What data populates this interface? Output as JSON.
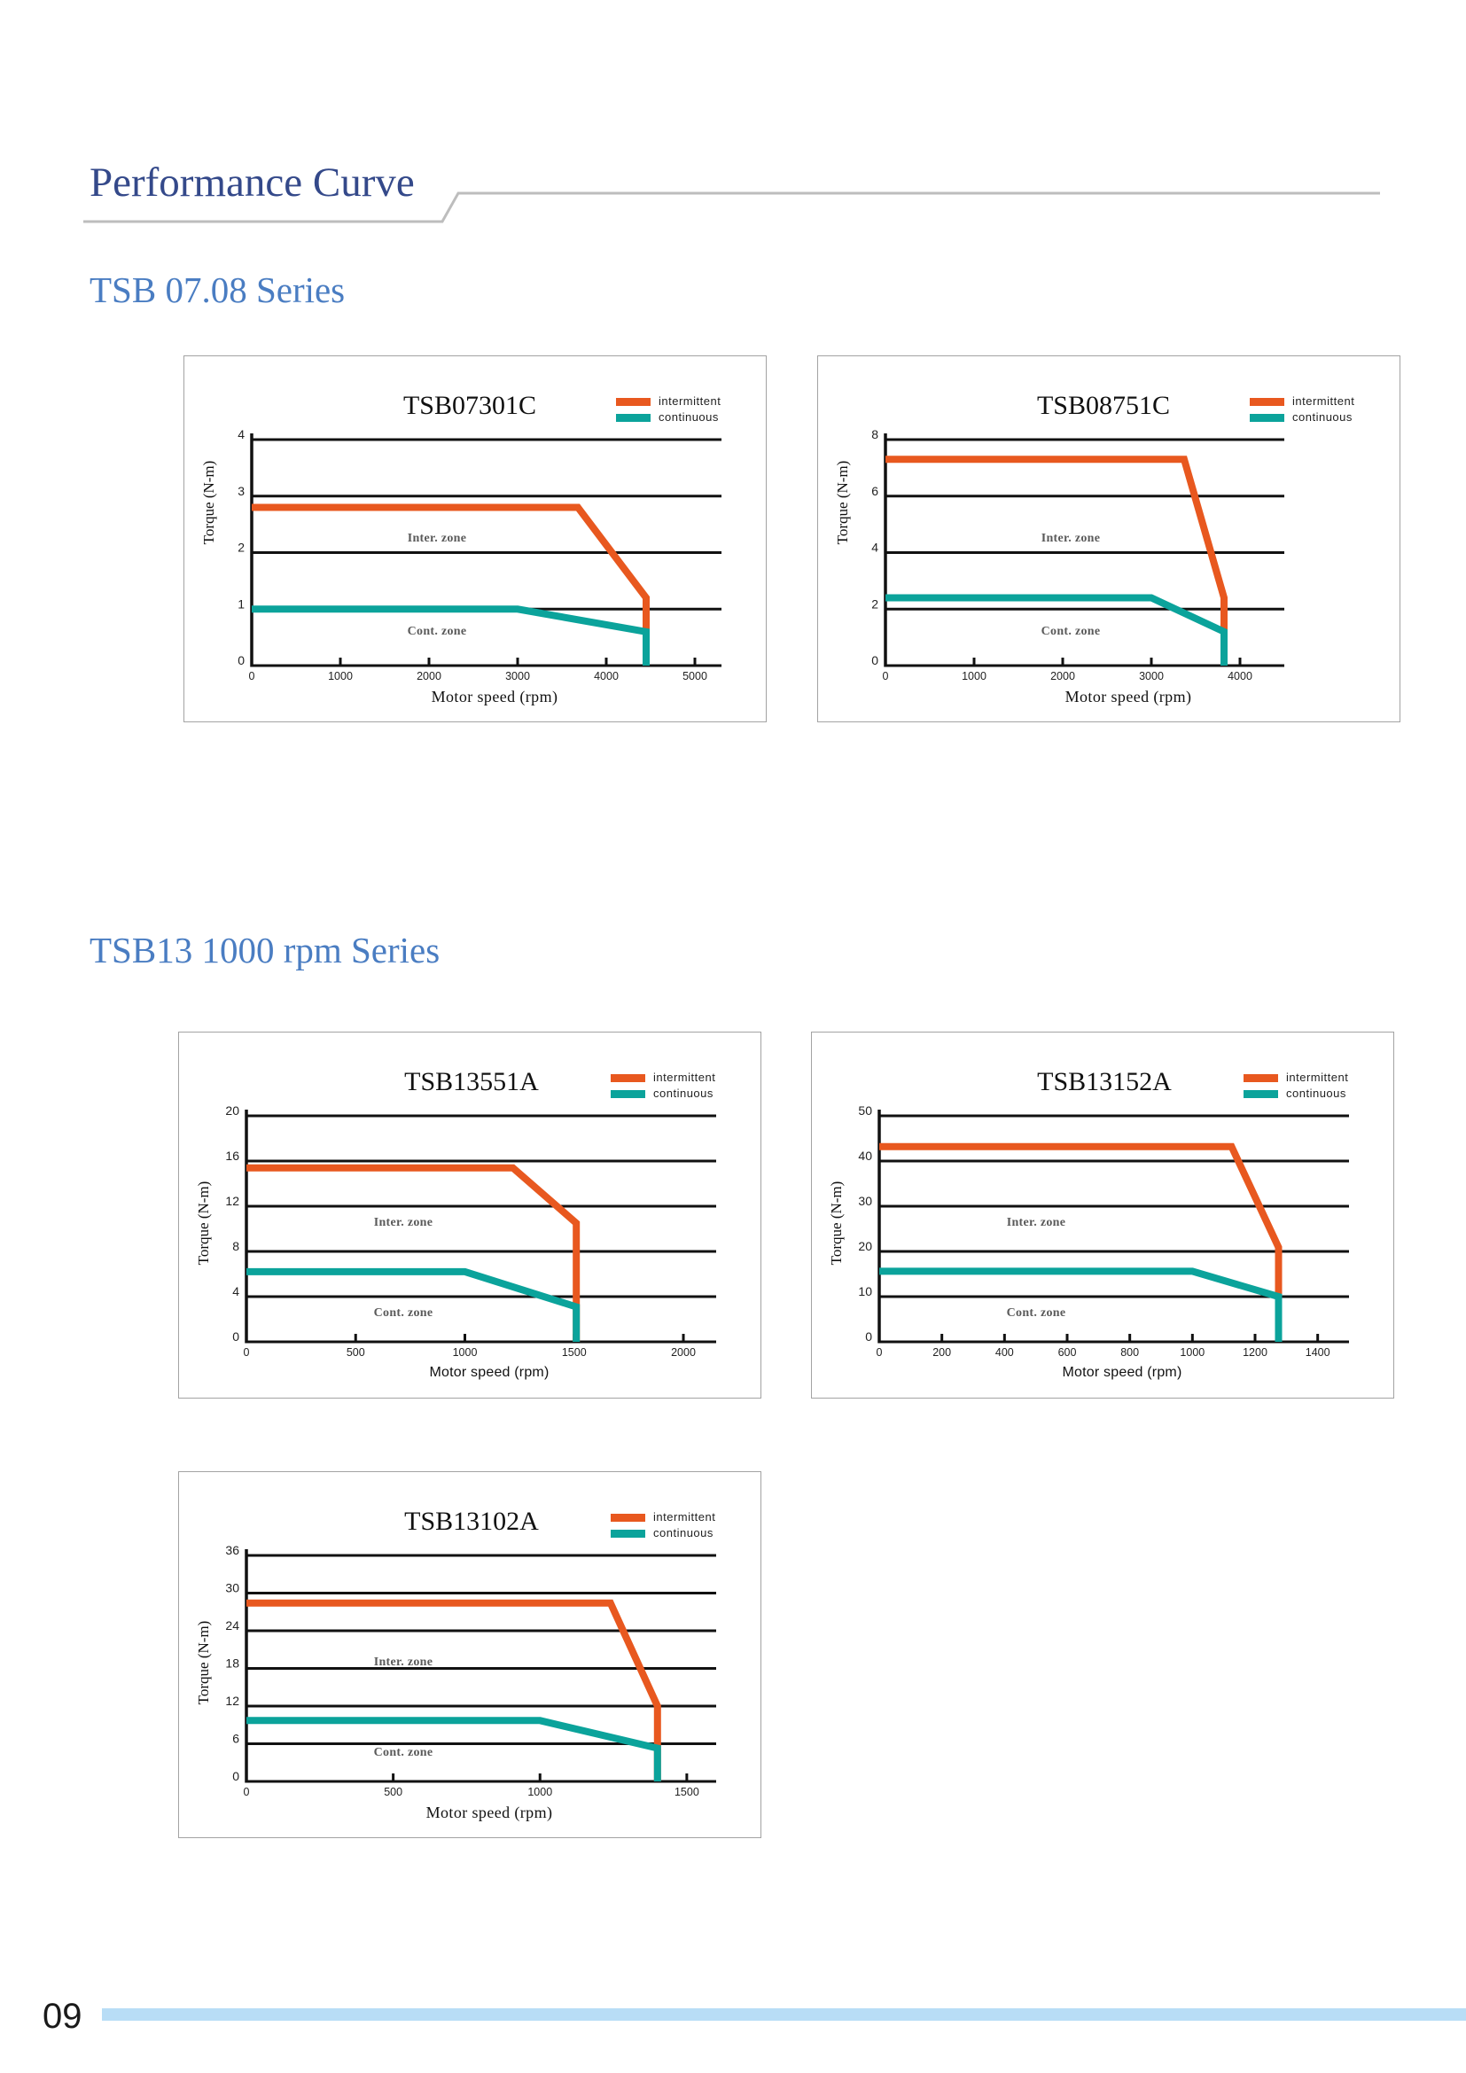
{
  "header": {
    "title": "Performance Curve"
  },
  "sections": [
    {
      "title": "TSB 07.08 Series"
    },
    {
      "title": "TSB13 1000 rpm Series"
    }
  ],
  "chart_data": [
    {
      "type": "line",
      "title": "TSB07301C",
      "xlabel": "Motor speed (rpm)",
      "ylabel": "Torque (N-m)",
      "xlim": [
        0,
        5300
      ],
      "ylim": [
        0,
        4
      ],
      "xticks": [
        0,
        1000,
        2000,
        3000,
        4000,
        5000
      ],
      "yticks": [
        0,
        1,
        2,
        3,
        4
      ],
      "annotations": [
        "Inter. zone",
        "Cont. zone"
      ],
      "series": [
        {
          "name": "intermittent",
          "color": "#e8581f",
          "points": [
            [
              0,
              2.8
            ],
            [
              3680,
              2.8
            ],
            [
              4450,
              1.2
            ],
            [
              4450,
              0
            ]
          ]
        },
        {
          "name": "continuous",
          "color": "#0ba39b",
          "points": [
            [
              0,
              1.0
            ],
            [
              3000,
              1.0
            ],
            [
              4450,
              0.6
            ],
            [
              4450,
              0
            ]
          ]
        }
      ]
    },
    {
      "type": "line",
      "title": "TSB08751C",
      "xlabel": "Motor speed (rpm)",
      "ylabel": "Torque (N-m)",
      "xlim": [
        0,
        4500
      ],
      "ylim": [
        0,
        8
      ],
      "xticks": [
        0,
        1000,
        2000,
        3000,
        4000
      ],
      "yticks": [
        0,
        2,
        4,
        6,
        8
      ],
      "annotations": [
        "Inter. zone",
        "Cont. zone"
      ],
      "series": [
        {
          "name": "intermittent",
          "color": "#e8581f",
          "points": [
            [
              0,
              7.3
            ],
            [
              3370,
              7.3
            ],
            [
              3820,
              2.4
            ],
            [
              3820,
              0
            ]
          ]
        },
        {
          "name": "continuous",
          "color": "#0ba39b",
          "points": [
            [
              0,
              2.4
            ],
            [
              3000,
              2.4
            ],
            [
              3820,
              1.2
            ],
            [
              3820,
              0
            ]
          ]
        }
      ]
    },
    {
      "type": "line",
      "title": "TSB13551A",
      "xlabel": "Motor speed (rpm)",
      "ylabel": "Torque (N-m)",
      "xlim": [
        0,
        2150
      ],
      "ylim": [
        0,
        20
      ],
      "xticks": [
        0,
        500,
        1000,
        1500,
        2000
      ],
      "yticks": [
        0,
        4,
        8,
        12,
        16,
        20
      ],
      "annotations": [
        "Inter. zone",
        "Cont. zone"
      ],
      "series": [
        {
          "name": "intermittent",
          "color": "#e8581f",
          "points": [
            [
              0,
              15.4
            ],
            [
              1220,
              15.4
            ],
            [
              1510,
              10.5
            ],
            [
              1510,
              0
            ]
          ]
        },
        {
          "name": "continuous",
          "color": "#0ba39b",
          "points": [
            [
              0,
              6.2
            ],
            [
              1000,
              6.2
            ],
            [
              1510,
              3.1
            ],
            [
              1510,
              0
            ]
          ]
        }
      ]
    },
    {
      "type": "line",
      "title": "TSB13152A",
      "xlabel": "Motor speed (rpm)",
      "ylabel": "Torque (N-m)",
      "xlim": [
        0,
        1500
      ],
      "ylim": [
        0,
        50
      ],
      "xticks": [
        0,
        200,
        400,
        600,
        800,
        1000,
        1200,
        1400
      ],
      "yticks": [
        0,
        10,
        20,
        30,
        40,
        50
      ],
      "annotations": [
        "Inter. zone",
        "Cont. zone"
      ],
      "series": [
        {
          "name": "intermittent",
          "color": "#e8581f",
          "points": [
            [
              0,
              43.2
            ],
            [
              1125,
              43.2
            ],
            [
              1275,
              20.9
            ],
            [
              1275,
              0
            ]
          ]
        },
        {
          "name": "continuous",
          "color": "#0ba39b",
          "points": [
            [
              0,
              15.6
            ],
            [
              1000,
              15.6
            ],
            [
              1275,
              10
            ],
            [
              1275,
              0
            ]
          ]
        }
      ]
    },
    {
      "type": "line",
      "title": "TSB13102A",
      "xlabel": "Motor speed (rpm)",
      "ylabel": "Torque (N-m)",
      "xlim": [
        0,
        1600
      ],
      "ylim": [
        0,
        36
      ],
      "xticks": [
        0,
        500,
        1000,
        1500
      ],
      "yticks": [
        0,
        6,
        12,
        18,
        24,
        30,
        36
      ],
      "annotations": [
        "Inter. zone",
        "Cont. zone"
      ],
      "series": [
        {
          "name": "intermittent",
          "color": "#e8581f",
          "points": [
            [
              0,
              28.4
            ],
            [
              1240,
              28.4
            ],
            [
              1400,
              12
            ],
            [
              1400,
              0
            ]
          ]
        },
        {
          "name": "continuous",
          "color": "#0ba39b",
          "points": [
            [
              0,
              9.7
            ],
            [
              1000,
              9.7
            ],
            [
              1400,
              5.3
            ],
            [
              1400,
              0
            ]
          ]
        }
      ]
    }
  ],
  "footer": {
    "page_number": "09"
  }
}
